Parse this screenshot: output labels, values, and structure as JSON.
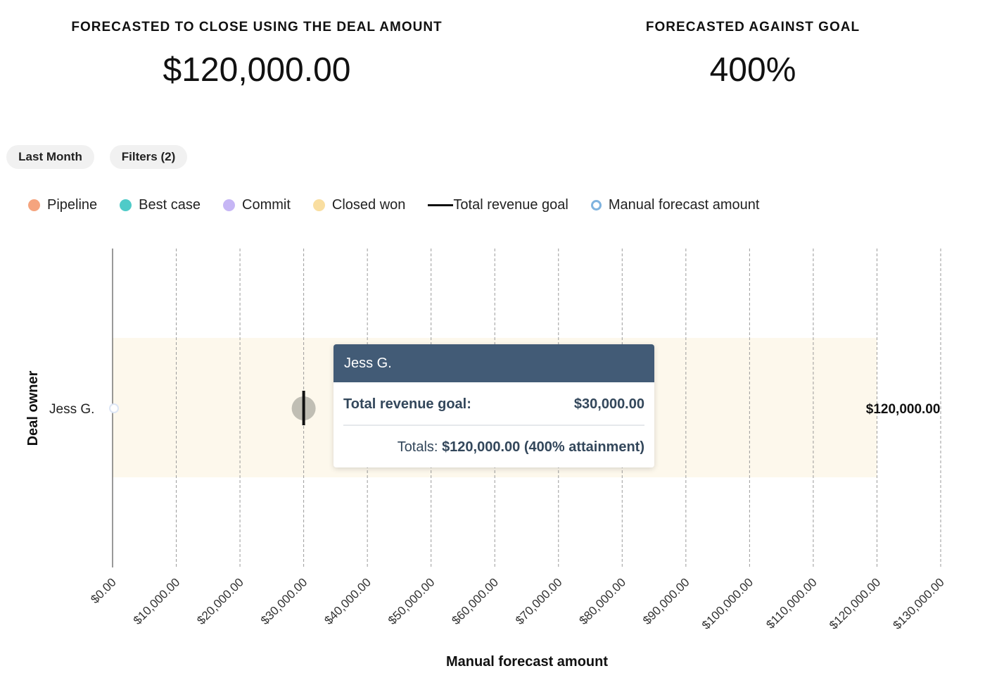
{
  "kpis": {
    "deal_amount": {
      "label": "FORECASTED TO CLOSE USING THE DEAL AMOUNT",
      "value": "$120,000.00"
    },
    "goal": {
      "label": "FORECASTED AGAINST GOAL",
      "value": "400%"
    }
  },
  "filters": {
    "date_label": "Last Month",
    "filters_label": "Filters (2)"
  },
  "legend": [
    {
      "label": "Pipeline",
      "color": "#f5a47e",
      "swatch": "dot"
    },
    {
      "label": "Best case",
      "color": "#4fcbc8",
      "swatch": "dot"
    },
    {
      "label": "Commit",
      "color": "#c6b6f5",
      "swatch": "dot"
    },
    {
      "label": "Closed won",
      "color": "#f9dea0",
      "swatch": "dot"
    },
    {
      "label": "Total revenue goal",
      "color": "#111111",
      "swatch": "line"
    },
    {
      "label": "Manual forecast amount",
      "color": "#7fb3df",
      "swatch": "ring"
    }
  ],
  "chart_data": {
    "type": "bar",
    "orientation": "horizontal",
    "xlabel": "Manual forecast amount",
    "ylabel": "Deal owner",
    "xlim": [
      0,
      130000
    ],
    "x_ticks": [
      0,
      10000,
      20000,
      30000,
      40000,
      50000,
      60000,
      70000,
      80000,
      90000,
      100000,
      110000,
      120000,
      130000
    ],
    "x_tick_labels": [
      "$0.00",
      "$10,000.00",
      "$20,000.00",
      "$30,000.00",
      "$40,000.00",
      "$50,000.00",
      "$60,000.00",
      "$70,000.00",
      "$80,000.00",
      "$90,000.00",
      "$100,000.00",
      "$110,000.00",
      "$120,000.00",
      "$130,000.00"
    ],
    "grid": "vertical dashed",
    "categories": [
      "Jess G."
    ],
    "series": [
      {
        "name": "Closed won",
        "values": [
          120000
        ]
      },
      {
        "name": "Total revenue goal",
        "values": [
          30000
        ]
      },
      {
        "name": "Manual forecast amount",
        "values": [
          0
        ]
      }
    ],
    "bar_total_labels": [
      "$120,000.00"
    ],
    "legend_position": "top-left"
  },
  "tooltip": {
    "title": "Jess G.",
    "goal_label": "Total revenue goal:",
    "goal_value": "$30,000.00",
    "totals_prefix": "Totals:",
    "totals_value": "$120,000.00 (400% attainment)"
  }
}
